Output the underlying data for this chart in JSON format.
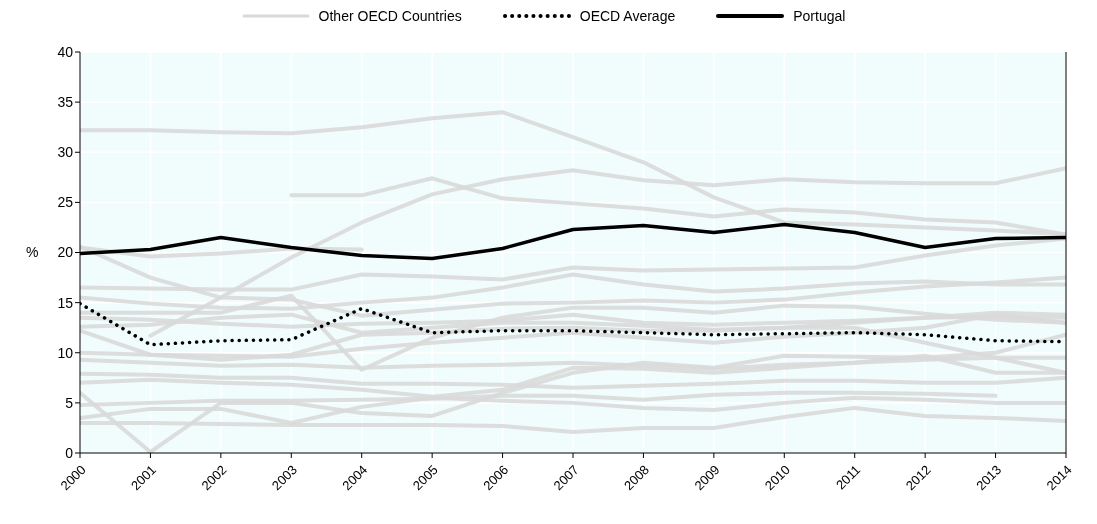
{
  "chart_data": {
    "type": "line",
    "ylabel": "%",
    "x": [
      2000,
      2001,
      2002,
      2003,
      2004,
      2005,
      2006,
      2007,
      2008,
      2009,
      2010,
      2011,
      2012,
      2013,
      2014
    ],
    "xlim": [
      2000,
      2014
    ],
    "xticks": [
      2000,
      2001,
      2002,
      2003,
      2004,
      2005,
      2006,
      2007,
      2008,
      2009,
      2010,
      2011,
      2012,
      2013,
      2014
    ],
    "ylim": [
      0,
      40
    ],
    "yticks": [
      0,
      5,
      10,
      15,
      20,
      25,
      30,
      35,
      40
    ],
    "grid": true,
    "legend": "top",
    "marker": "none",
    "series": [
      {
        "name": "Other OECD Countries",
        "color": "#d9d9d9",
        "values": [
          32.2,
          32.2,
          32.0,
          31.9,
          32.5,
          33.4,
          34.0,
          31.5,
          29.0,
          25.5,
          23.0,
          22.8,
          22.5,
          22.2,
          21.8
        ]
      },
      {
        "color": "#d9d9d9",
        "values": [
          null,
          null,
          null,
          25.7,
          25.7,
          27.4,
          25.4,
          24.9,
          24.4,
          23.6,
          24.3,
          24.0,
          23.3,
          23.0,
          21.8
        ]
      },
      {
        "color": "#d9d9d9",
        "values": [
          null,
          11.7,
          15.5,
          19.5,
          23.0,
          25.8,
          27.3,
          28.2,
          27.2,
          26.7,
          27.3,
          27.0,
          26.9,
          26.9,
          28.4
        ]
      },
      {
        "color": "#d9d9d9",
        "values": [
          20.5,
          19.6,
          19.9,
          20.4,
          20.3,
          null,
          null,
          null,
          null,
          null,
          null,
          null,
          null,
          null,
          null
        ]
      },
      {
        "color": "#d9d9d9",
        "values": [
          20.6,
          17.5,
          15.5,
          15.3,
          13.7,
          14.3,
          14.9,
          15.0,
          15.2,
          15.0,
          15.3,
          16.0,
          16.6,
          17.0,
          17.5
        ]
      },
      {
        "color": "#d9d9d9",
        "values": [
          16.5,
          16.4,
          16.3,
          16.3,
          17.8,
          17.6,
          17.3,
          18.5,
          18.2,
          18.3,
          18.4,
          18.5,
          19.7,
          20.7,
          21.4
        ]
      },
      {
        "color": "#d9d9d9",
        "values": [
          15.5,
          14.9,
          14.5,
          14.4,
          15.0,
          15.5,
          16.5,
          17.8,
          16.8,
          16.1,
          16.4,
          16.9,
          17.1,
          16.8,
          16.8
        ]
      },
      {
        "color": "#d9d9d9",
        "values": [
          14.0,
          14.0,
          14.0,
          15.7,
          8.3,
          11.5,
          13.5,
          14.5,
          14.5,
          14.0,
          14.7,
          14.6,
          13.9,
          13.3,
          13.0
        ]
      },
      {
        "color": "#d9d9d9",
        "values": [
          13.5,
          13.3,
          12.9,
          12.6,
          12.9,
          13.0,
          13.2,
          13.8,
          13.0,
          12.8,
          13.0,
          13.2,
          13.5,
          13.6,
          13.5
        ]
      },
      {
        "color": "#d9d9d9",
        "values": [
          12.6,
          12.8,
          13.5,
          13.8,
          12.0,
          12.5,
          13.0,
          13.0,
          12.7,
          12.3,
          12.5,
          13.0,
          13.5,
          14.0,
          13.8
        ]
      },
      {
        "color": "#d9d9d9",
        "values": [
          10.0,
          9.8,
          9.7,
          9.6,
          10.4,
          11.0,
          11.5,
          12.0,
          11.5,
          11.0,
          11.6,
          12.0,
          12.5,
          13.8,
          13.0
        ]
      },
      {
        "color": "#d9d9d9",
        "values": [
          12.2,
          9.8,
          9.3,
          9.8,
          11.8,
          12.0,
          12.4,
          12.5,
          12.2,
          12.2,
          12.5,
          12.5,
          11.0,
          9.5,
          8.0
        ]
      },
      {
        "color": "#d9d9d9",
        "values": [
          9.3,
          9.0,
          8.7,
          8.8,
          8.5,
          8.7,
          8.8,
          9.0,
          8.7,
          8.4,
          8.8,
          9.0,
          9.3,
          9.5,
          9.5
        ]
      },
      {
        "color": "#d9d9d9",
        "values": [
          7.9,
          7.8,
          7.5,
          7.5,
          6.9,
          6.9,
          6.8,
          6.5,
          6.7,
          6.9,
          7.2,
          7.2,
          7.0,
          7.0,
          7.5
        ]
      },
      {
        "color": "#d9d9d9",
        "values": [
          7.0,
          7.3,
          7.0,
          6.8,
          6.3,
          5.6,
          6.3,
          8.5,
          8.4,
          8.0,
          8.5,
          9.0,
          9.7,
          8.0,
          8.0
        ]
      },
      {
        "color": "#d9d9d9",
        "values": [
          6.0,
          0.1,
          5.0,
          5.0,
          4.0,
          3.7,
          6.0,
          8.0,
          9.0,
          8.5,
          9.7,
          9.6,
          9.5,
          10.0,
          11.8
        ]
      },
      {
        "color": "#d9d9d9",
        "values": [
          4.8,
          5.0,
          5.2,
          5.2,
          5.3,
          5.4,
          5.7,
          5.7,
          5.3,
          5.8,
          6.0,
          6.0,
          5.9,
          5.7,
          null
        ]
      },
      {
        "color": "#d9d9d9",
        "values": [
          3.5,
          4.4,
          4.4,
          3.0,
          4.6,
          5.5,
          5.2,
          5.0,
          4.5,
          4.3,
          5.0,
          5.5,
          5.3,
          5.0,
          5.0
        ]
      },
      {
        "color": "#d9d9d9",
        "values": [
          3.0,
          3.0,
          2.9,
          2.8,
          2.8,
          2.8,
          2.7,
          2.1,
          2.5,
          2.5,
          3.6,
          4.5,
          3.7,
          3.5,
          3.2
        ]
      },
      {
        "name": "OECD Average",
        "color": "#000000",
        "line_style": "dotted",
        "values": [
          14.9,
          10.8,
          11.2,
          11.3,
          14.4,
          12.0,
          12.2,
          12.2,
          12.0,
          11.8,
          11.9,
          12.0,
          11.8,
          11.2,
          11.1
        ]
      },
      {
        "name": "Portugal",
        "color": "#000000",
        "line_style": "solid",
        "values": [
          19.9,
          20.3,
          21.5,
          20.5,
          19.7,
          19.4,
          20.4,
          22.3,
          22.7,
          22.0,
          22.8,
          22.0,
          20.5,
          21.4,
          21.5
        ]
      }
    ]
  }
}
